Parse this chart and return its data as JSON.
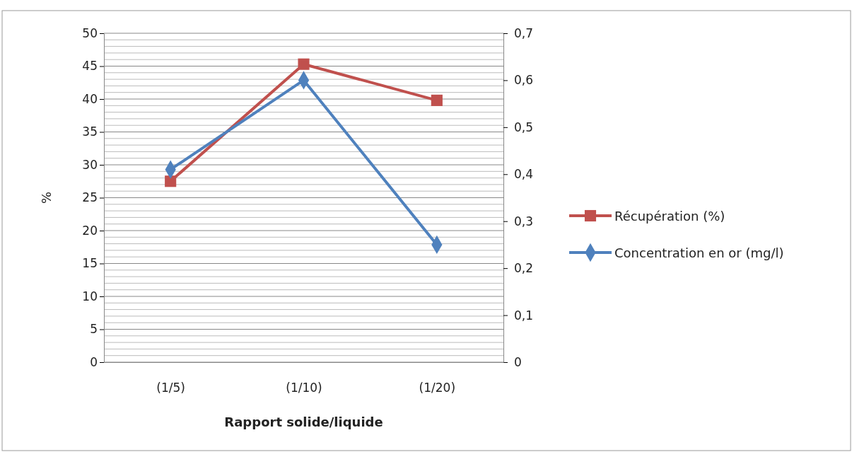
{
  "chart_data": {
    "type": "line",
    "xlabel": "Rapport solide/liquide",
    "ylabel": "%",
    "categories": [
      "(1/5)",
      "(1/10)",
      "(1/20)"
    ],
    "series": [
      {
        "name": "Récupération (%)",
        "color": "#c0504d",
        "values": [
          27.5,
          45.3,
          39.8
        ],
        "marker": "square"
      },
      {
        "name": "Concentration en or (mg/l)",
        "color": "#4f81bd",
        "values": [
          0.41,
          0.6,
          0.25
        ],
        "axis": "y2",
        "marker": "diamond"
      }
    ],
    "ylim": [
      0,
      50
    ],
    "yticks": [
      0,
      {
        "value": 1,
        "label": null
      },
      {
        "value": 2,
        "label": null
      },
      {
        "value": 3,
        "label": null
      },
      {
        "value": 4,
        "label": null
      },
      5,
      {
        "value": 6,
        "label": null
      },
      {
        "value": 7,
        "label": null
      },
      {
        "value": 8,
        "label": null
      },
      {
        "value": 9,
        "label": null
      },
      10,
      {
        "value": 11,
        "label": null
      },
      {
        "value": 12,
        "label": null
      },
      {
        "value": 13,
        "label": null
      },
      {
        "value": 14,
        "label": null
      },
      15,
      {
        "value": 16,
        "label": null
      },
      {
        "value": 17,
        "label": null
      },
      {
        "value": 18,
        "label": null
      },
      {
        "value": 19,
        "label": null
      },
      20,
      {
        "value": 21,
        "label": null
      },
      {
        "value": 22,
        "label": null
      },
      {
        "value": 23,
        "label": null
      },
      {
        "value": 24,
        "label": null
      },
      25,
      {
        "value": 26,
        "label": null
      },
      {
        "value": 27,
        "label": null
      },
      {
        "value": 28,
        "label": null
      },
      {
        "value": 29,
        "label": null
      },
      30,
      {
        "value": 31,
        "label": null
      },
      {
        "value": 32,
        "label": null
      },
      {
        "value": 33,
        "label": null
      },
      {
        "value": 34,
        "label": null
      },
      35,
      {
        "value": 36,
        "label": null
      },
      {
        "value": 37,
        "label": null
      },
      {
        "value": 38,
        "label": null
      },
      {
        "value": 39,
        "label": null
      },
      40,
      {
        "value": 41,
        "label": null
      },
      {
        "value": 42,
        "label": null
      },
      {
        "value": 43,
        "label": null
      },
      {
        "value": 44,
        "label": null
      },
      45,
      {
        "value": 46,
        "label": null
      },
      {
        "value": 47,
        "label": null
      },
      {
        "value": 48,
        "label": null
      },
      {
        "value": 49,
        "label": null
      },
      50
    ],
    "y2lim": [
      0,
      0.7
    ],
    "y2ticks": [
      0,
      {
        "value": 0.1,
        "label": "0,1"
      },
      {
        "value": 0.2,
        "label": "0,2"
      },
      {
        "value": 0.3,
        "label": "0,3"
      },
      {
        "value": 0.4,
        "label": "0,4"
      },
      {
        "value": 0.5,
        "label": "0,5"
      },
      {
        "value": 0.6,
        "label": "0,6"
      },
      {
        "value": 0.7,
        "label": "0,7"
      }
    ],
    "grid": "y",
    "legend": "right",
    "line_style": "solid"
  }
}
